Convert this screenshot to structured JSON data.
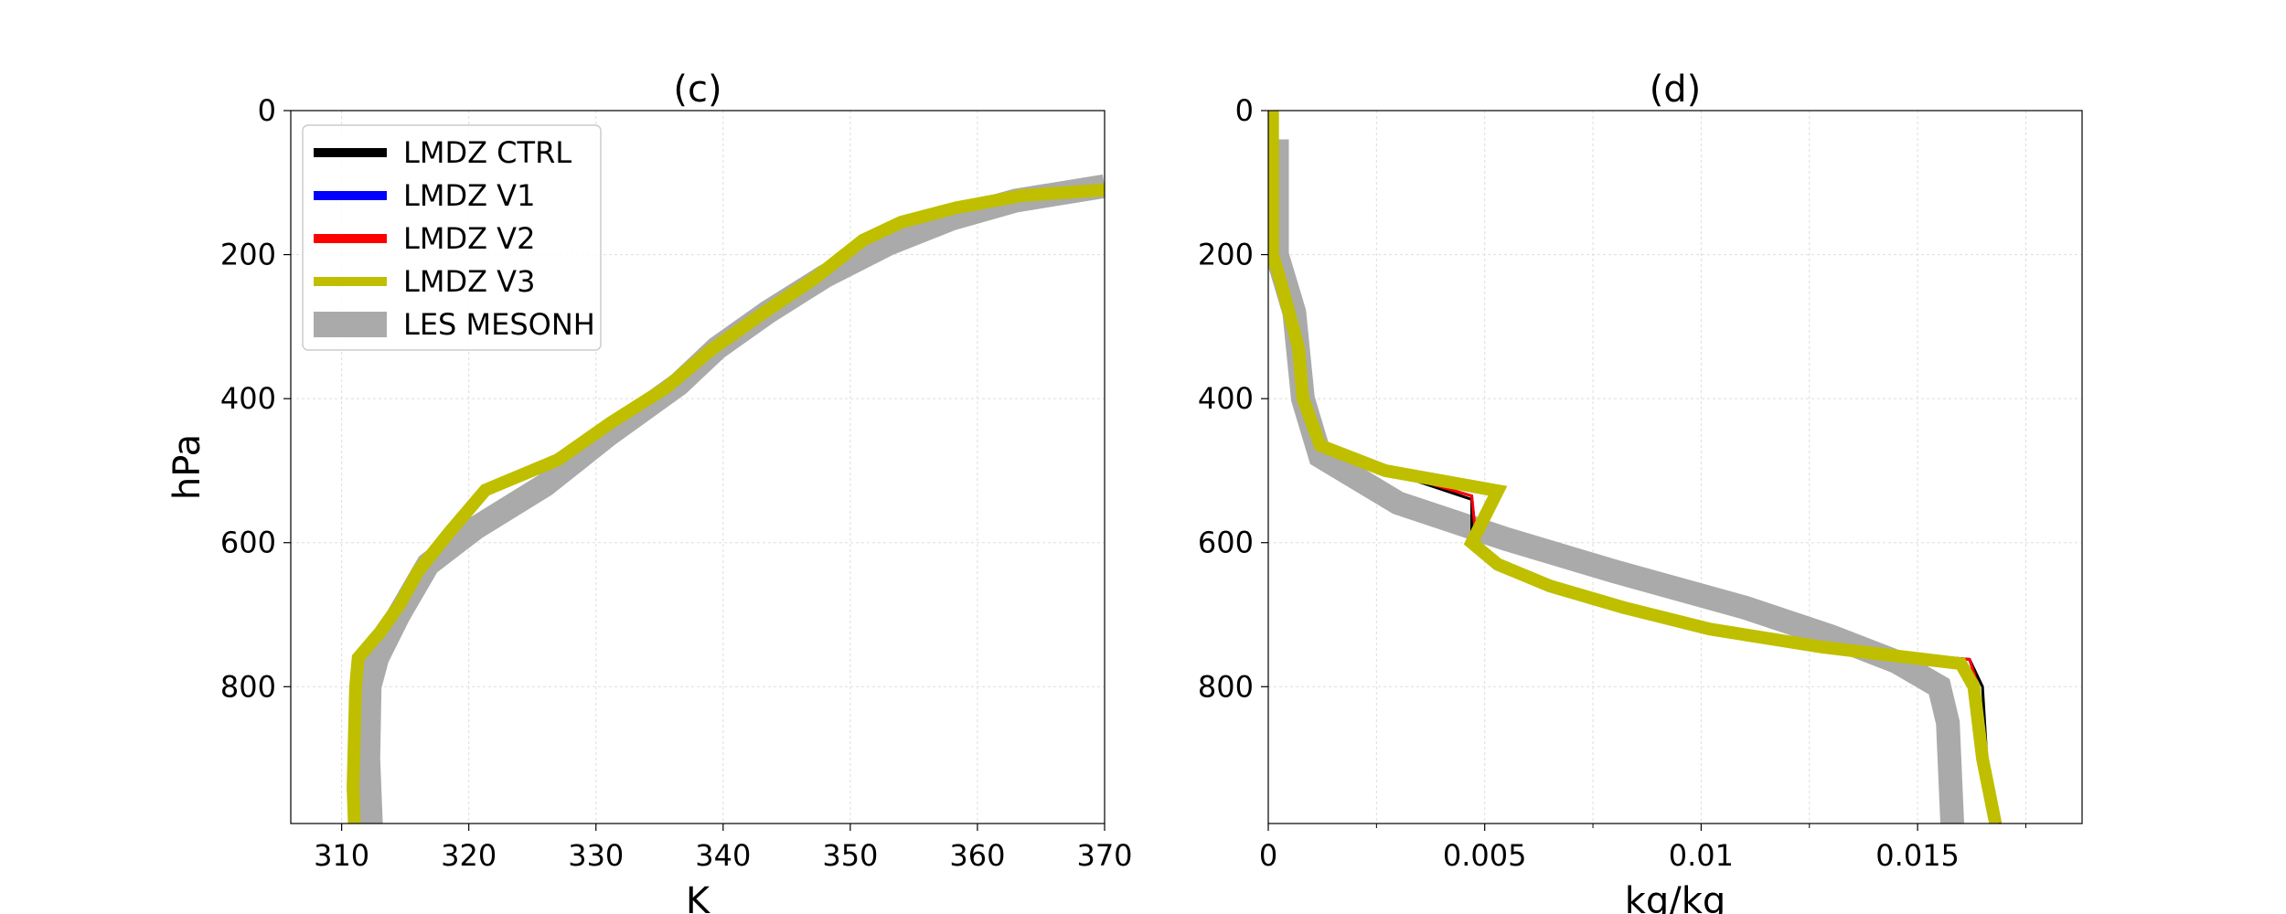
{
  "chart_data": [
    {
      "type": "line",
      "title": "(c)",
      "xlabel": "K",
      "ylabel": "hPa",
      "xlim": [
        306,
        370
      ],
      "ylim": [
        990,
        0
      ],
      "y_inverted": true,
      "grid": true,
      "xticks": [
        310,
        320,
        330,
        340,
        350,
        360,
        370
      ],
      "xtick_labels": [
        "310",
        "320",
        "330",
        "340",
        "350",
        "360",
        "370"
      ],
      "yticks": [
        0,
        200,
        400,
        600,
        800
      ],
      "ytick_labels": [
        "0",
        "200",
        "400",
        "600",
        "800"
      ],
      "legend": {
        "placement": "top-left",
        "entries": [
          "LMDZ CTRL",
          "LMDZ V1",
          "LMDZ V2",
          "LMDZ V3",
          "LES MESONH"
        ]
      },
      "series": [
        {
          "name": "LES MESONH",
          "color": "#aaaaaa",
          "line_weight": "thick",
          "points": [
            [
              312.3,
              990
            ],
            [
              312.1,
              900
            ],
            [
              312.2,
              800
            ],
            [
              312.8,
              760
            ],
            [
              314.5,
              700
            ],
            [
              316.8,
              630
            ],
            [
              320.5,
              580
            ],
            [
              326,
              520
            ],
            [
              331,
              450
            ],
            [
              336.5,
              380
            ],
            [
              339.5,
              330
            ],
            [
              343.5,
              280
            ],
            [
              348,
              230
            ],
            [
              353,
              185
            ],
            [
              358,
              150
            ],
            [
              363,
              125
            ],
            [
              370,
              105
            ]
          ]
        },
        {
          "name": "LMDZ CTRL",
          "color": "#000000",
          "line_weight": "thin",
          "points": [
            [
              311.3,
              990
            ],
            [
              311.1,
              940
            ],
            [
              311.3,
              800
            ],
            [
              311.4,
              760
            ],
            [
              313.2,
              720
            ],
            [
              314.8,
              680
            ],
            [
              316.2,
              630
            ],
            [
              318.5,
              580
            ],
            [
              321,
              530
            ],
            [
              327,
              480
            ],
            [
              331,
              430
            ],
            [
              335.5,
              380
            ],
            [
              339,
              330
            ],
            [
              343,
              280
            ],
            [
              347.3,
              230
            ],
            [
              351,
              180
            ],
            [
              354,
              155
            ],
            [
              358.3,
              135
            ],
            [
              363.5,
              118
            ],
            [
              370,
              110
            ]
          ]
        },
        {
          "name": "LMDZ V1",
          "color": "#0000ff",
          "line_weight": "thin",
          "points": [
            [
              311.3,
              990
            ],
            [
              311.1,
              940
            ],
            [
              311.3,
              800
            ],
            [
              311.4,
              760
            ],
            [
              313.2,
              720
            ],
            [
              314.8,
              680
            ],
            [
              316.2,
              630
            ],
            [
              318.5,
              580
            ],
            [
              321,
              530
            ],
            [
              327,
              480
            ],
            [
              331,
              430
            ],
            [
              335.5,
              380
            ],
            [
              339,
              330
            ],
            [
              343,
              280
            ],
            [
              347.3,
              230
            ],
            [
              351,
              180
            ],
            [
              354,
              155
            ],
            [
              358.3,
              135
            ],
            [
              363.5,
              118
            ],
            [
              370,
              110
            ]
          ]
        },
        {
          "name": "LMDZ V2",
          "color": "#ff0000",
          "line_weight": "thin",
          "points": [
            [
              311.3,
              990
            ],
            [
              311.1,
              940
            ],
            [
              311.3,
              800
            ],
            [
              311.4,
              760
            ],
            [
              313.2,
              720
            ],
            [
              314.8,
              680
            ],
            [
              316.2,
              630
            ],
            [
              318.5,
              580
            ],
            [
              321,
              530
            ],
            [
              327,
              480
            ],
            [
              331,
              430
            ],
            [
              335.5,
              380
            ],
            [
              339,
              330
            ],
            [
              343,
              280
            ],
            [
              347.3,
              230
            ],
            [
              351,
              180
            ],
            [
              354,
              155
            ],
            [
              358.3,
              135
            ],
            [
              363.5,
              118
            ],
            [
              370,
              110
            ]
          ]
        },
        {
          "name": "LMDZ V3",
          "color": "#bfbf00",
          "line_weight": "medium",
          "points": [
            [
              311,
              990
            ],
            [
              310.9,
              940
            ],
            [
              311.1,
              800
            ],
            [
              311.3,
              760
            ],
            [
              313,
              725
            ],
            [
              314.6,
              685
            ],
            [
              316,
              640
            ],
            [
              318.5,
              585
            ],
            [
              321.3,
              527
            ],
            [
              327,
              485
            ],
            [
              331.2,
              433
            ],
            [
              335.5,
              385
            ],
            [
              339,
              333
            ],
            [
              343,
              283
            ],
            [
              347.2,
              233
            ],
            [
              351,
              180
            ],
            [
              354,
              155
            ],
            [
              358.3,
              135
            ],
            [
              363.5,
              118
            ],
            [
              370,
              110
            ]
          ]
        }
      ]
    },
    {
      "type": "line",
      "title": "(d)",
      "xlabel": "kg/kg",
      "ylabel": "",
      "xlim": [
        0,
        0.0188
      ],
      "ylim": [
        990,
        0
      ],
      "y_inverted": true,
      "grid": true,
      "xticks": [
        0,
        0.005,
        0.01,
        0.015
      ],
      "xtick_labels": [
        "0",
        "0.005",
        "0.01",
        "0.015"
      ],
      "minor_xticks": [
        0.0025,
        0.0075,
        0.0125,
        0.0175
      ],
      "yticks": [
        0,
        200,
        400,
        600,
        800
      ],
      "ytick_labels": [
        "0",
        "200",
        "400",
        "600",
        "800"
      ],
      "series": [
        {
          "name": "LES MESONH",
          "color": "#aaaaaa",
          "line_weight": "thick",
          "points": [
            [
              0.0002,
              40
            ],
            [
              0.0002,
              200
            ],
            [
              0.0006,
              280
            ],
            [
              0.0008,
              400
            ],
            [
              0.0012,
              480
            ],
            [
              0.003,
              545
            ],
            [
              0.0055,
              595
            ],
            [
              0.008,
              640
            ],
            [
              0.011,
              690
            ],
            [
              0.013,
              730
            ],
            [
              0.0145,
              765
            ],
            [
              0.0155,
              800
            ],
            [
              0.0157,
              850
            ],
            [
              0.0158,
              990
            ]
          ]
        },
        {
          "name": "LMDZ CTRL",
          "color": "#000000",
          "line_weight": "thin",
          "points": [
            [
              0.0001,
              0
            ],
            [
              0.0001,
              200
            ],
            [
              0.0003,
              240
            ],
            [
              0.0007,
              330
            ],
            [
              0.0008,
              400
            ],
            [
              0.0012,
              465
            ],
            [
              0.0027,
              500
            ],
            [
              0.0047,
              540
            ],
            [
              0.0047,
              595
            ],
            [
              0.0053,
              630
            ],
            [
              0.0065,
              660
            ],
            [
              0.0082,
              690
            ],
            [
              0.0102,
              720
            ],
            [
              0.0128,
              745
            ],
            [
              0.0162,
              762
            ],
            [
              0.0165,
              800
            ],
            [
              0.0166,
              900
            ],
            [
              0.0169,
              990
            ]
          ]
        },
        {
          "name": "LMDZ V1",
          "color": "#0000ff",
          "line_weight": "thin",
          "points": [
            [
              0.0001,
              0
            ],
            [
              0.0001,
              200
            ],
            [
              0.0003,
              240
            ],
            [
              0.0007,
              330
            ],
            [
              0.0008,
              400
            ],
            [
              0.0012,
              465
            ],
            [
              0.0027,
              500
            ],
            [
              0.0047,
              535
            ],
            [
              0.0048,
              595
            ],
            [
              0.0053,
              630
            ],
            [
              0.0065,
              660
            ],
            [
              0.0082,
              690
            ],
            [
              0.0102,
              720
            ],
            [
              0.0128,
              745
            ],
            [
              0.0162,
              762
            ],
            [
              0.0164,
              800
            ],
            [
              0.0166,
              900
            ],
            [
              0.0169,
              990
            ]
          ]
        },
        {
          "name": "LMDZ V2",
          "color": "#ff0000",
          "line_weight": "thin",
          "points": [
            [
              0.0001,
              0
            ],
            [
              0.0001,
              200
            ],
            [
              0.0003,
              240
            ],
            [
              0.0007,
              330
            ],
            [
              0.0008,
              400
            ],
            [
              0.0012,
              465
            ],
            [
              0.0027,
              500
            ],
            [
              0.0047,
              535
            ],
            [
              0.0048,
              595
            ],
            [
              0.0053,
              630
            ],
            [
              0.0065,
              660
            ],
            [
              0.0082,
              690
            ],
            [
              0.0102,
              720
            ],
            [
              0.0128,
              745
            ],
            [
              0.0162,
              762
            ],
            [
              0.0164,
              800
            ],
            [
              0.0166,
              900
            ],
            [
              0.0169,
              990
            ]
          ]
        },
        {
          "name": "LMDZ V3",
          "color": "#bfbf00",
          "line_weight": "medium",
          "points": [
            [
              0.0001,
              0
            ],
            [
              0.0001,
              200
            ],
            [
              0.0003,
              240
            ],
            [
              0.0007,
              330
            ],
            [
              0.0008,
              400
            ],
            [
              0.0012,
              465
            ],
            [
              0.0027,
              500
            ],
            [
              0.0053,
              528
            ],
            [
              0.0047,
              600
            ],
            [
              0.0053,
              630
            ],
            [
              0.0065,
              660
            ],
            [
              0.0082,
              690
            ],
            [
              0.0102,
              720
            ],
            [
              0.0128,
              745
            ],
            [
              0.016,
              768
            ],
            [
              0.0163,
              800
            ],
            [
              0.0165,
              900
            ],
            [
              0.0168,
              990
            ]
          ]
        }
      ]
    }
  ]
}
